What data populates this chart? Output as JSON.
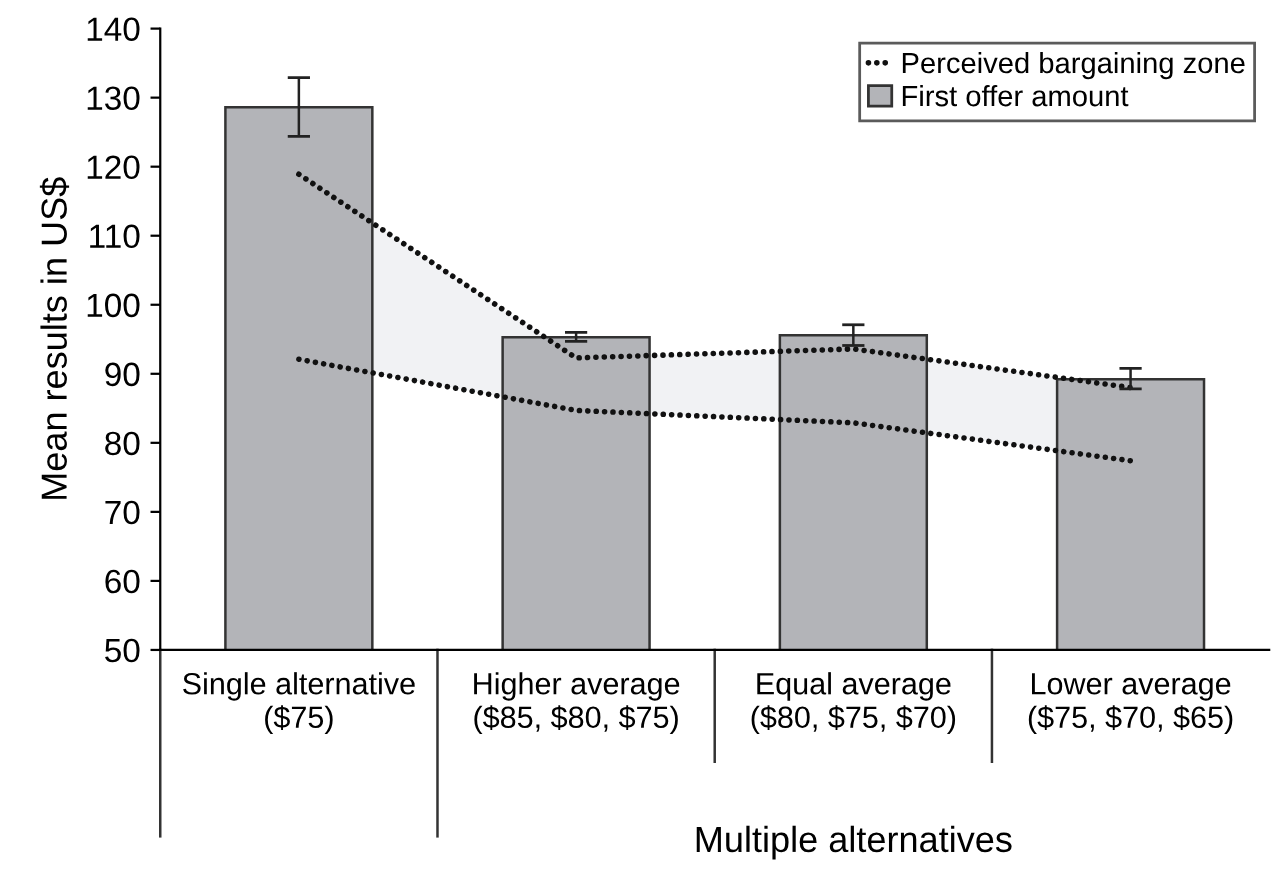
{
  "chart_data": {
    "type": "bar",
    "ylabel": "Mean results in US$",
    "categories": [
      "Single alternative\n($75)",
      "Higher average\n($85, $80, $75)",
      "Equal average\n($80, $75, $70)",
      "Lower average\n($75, $70, $65)"
    ],
    "series": [
      {
        "name": "Perceived bargaining zone",
        "type": "line",
        "color": "#111111",
        "line_style": "dotted",
        "values": [
          118.9,
          92.3,
          93.6,
          88.0
        ],
        "lower": [
          92.1,
          84.7,
          82.9,
          77.4
        ],
        "upper": [
          118.9,
          92.3,
          93.6,
          88.0
        ]
      },
      {
        "type": "line",
        "color": "#111111",
        "line_style": "dotted",
        "values": [
          92.1,
          84.7,
          82.9,
          77.4
        ]
      },
      {
        "name": "First offer amount",
        "color": "#b3b4b8",
        "values": [
          128.6,
          95.3,
          95.6,
          89.2
        ],
        "errors": [
          [
            124.4,
            132.9
          ],
          [
            94.7,
            96.0
          ],
          [
            94.1,
            97.1
          ],
          [
            87.8,
            90.8
          ]
        ]
      }
    ],
    "annotations": [
      "Multiple alternatives"
    ],
    "ylim": [
      50,
      140
    ],
    "yticks": [
      50,
      60,
      70,
      80,
      90,
      100,
      110,
      120,
      130,
      140
    ],
    "grid": false,
    "legend": "top right"
  }
}
